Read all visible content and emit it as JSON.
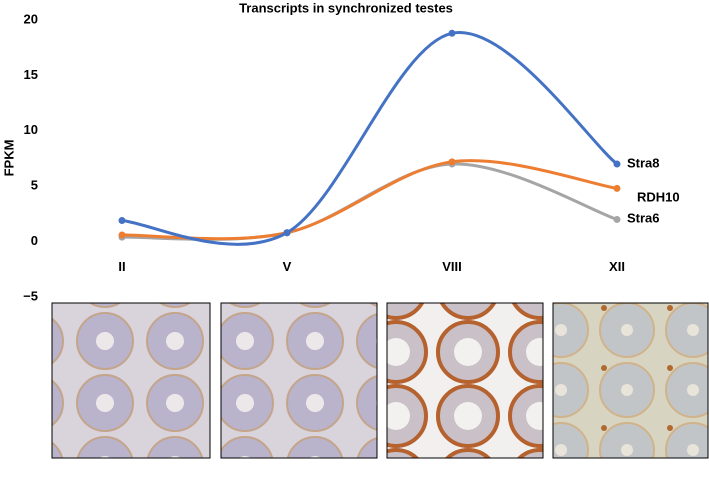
{
  "chart_data": {
    "type": "line",
    "title": "Transcripts in synchronized testes",
    "y_label": "FPKM",
    "categories": [
      "II",
      "V",
      "VIII",
      "XII"
    ],
    "series": [
      {
        "name": "Stra8",
        "color": "#4472c4",
        "values": [
          1.9,
          0.8,
          18.8,
          7.0
        ]
      },
      {
        "name": "RDH10",
        "color": "#ed7d31",
        "values": [
          0.6,
          0.8,
          7.2,
          4.8
        ]
      },
      {
        "name": "Stra6",
        "color": "#a5a5a5",
        "values": [
          0.4,
          0.8,
          7.0,
          2.0
        ]
      }
    ],
    "ylim": [
      -5,
      20
    ],
    "yticks": [
      {
        "value": -5,
        "label": "−5"
      },
      0,
      5,
      10,
      15,
      20
    ],
    "smooth": true
  }
}
